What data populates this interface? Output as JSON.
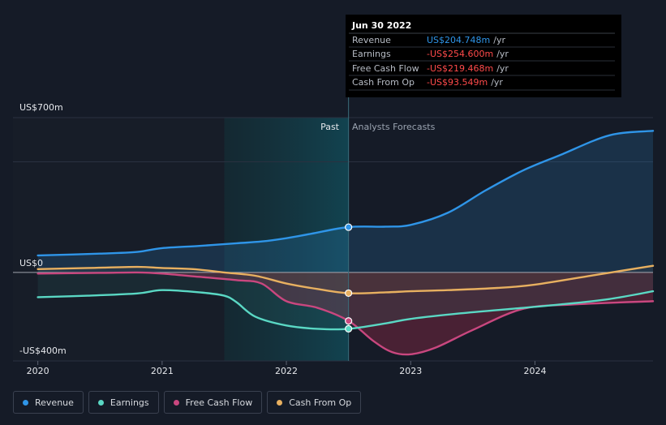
{
  "colors": {
    "background": "#151b27",
    "revenue": "#2f95e8",
    "earnings": "#5ad8c4",
    "free_cash_flow": "#c9477f",
    "cash_from_op": "#e8b060",
    "grid": "#2a3140",
    "zero_line": "#ffffff",
    "negative": "#ff4a4a",
    "past_shade": "#13383f"
  },
  "tooltip": {
    "date": "Jun 30 2022",
    "rows": [
      {
        "label": "Revenue",
        "value": "US$204.748m",
        "unit": "/yr",
        "color": "#2f95e8"
      },
      {
        "label": "Earnings",
        "value": "-US$254.600m",
        "unit": "/yr",
        "color": "#ff4a4a"
      },
      {
        "label": "Free Cash Flow",
        "value": "-US$219.468m",
        "unit": "/yr",
        "color": "#ff4a4a"
      },
      {
        "label": "Cash From Op",
        "value": "-US$93.549m",
        "unit": "/yr",
        "color": "#ff4a4a"
      }
    ]
  },
  "labels": {
    "past": "Past",
    "forecast": "Analysts Forecasts"
  },
  "legend": [
    {
      "name": "revenue",
      "label": "Revenue",
      "color": "#2f95e8"
    },
    {
      "name": "earnings",
      "label": "Earnings",
      "color": "#5ad8c4"
    },
    {
      "name": "free-cash-flow",
      "label": "Free Cash Flow",
      "color": "#c9477f"
    },
    {
      "name": "cash-from-op",
      "label": "Cash From Op",
      "color": "#e8b060"
    }
  ],
  "chart_data": {
    "type": "line",
    "title": "",
    "xlabel": "",
    "ylabel": "",
    "x_ticks": [
      2020,
      2021,
      2022,
      2023,
      2024
    ],
    "xlim": [
      2019.8,
      2024.95
    ],
    "ylim": [
      -400,
      700
    ],
    "y_tick_labels": [
      {
        "value": 700,
        "label": "US$700m"
      },
      {
        "value": 0,
        "label": "US$0"
      },
      {
        "value": -400,
        "label": "-US$400m"
      }
    ],
    "gridlines": [
      700,
      500,
      0,
      -400
    ],
    "past_region": [
      2021.5,
      2022.5
    ],
    "divider_x": 2022.5,
    "series": [
      {
        "name": "Revenue",
        "key": "revenue",
        "x": [
          2020.0,
          2020.5,
          2020.8,
          2021.0,
          2021.3,
          2021.6,
          2021.8,
          2022.0,
          2022.2,
          2022.5,
          2022.8,
          2023.0,
          2023.3,
          2023.6,
          2023.9,
          2024.2,
          2024.6,
          2024.95
        ],
        "y": [
          77,
          85,
          93,
          110,
          120,
          132,
          140,
          155,
          175,
          205,
          207,
          215,
          270,
          370,
          460,
          530,
          620,
          640
        ]
      },
      {
        "name": "Earnings",
        "key": "earnings",
        "x": [
          2020.0,
          2020.4,
          2020.8,
          2021.0,
          2021.3,
          2021.5,
          2021.6,
          2021.75,
          2022.0,
          2022.25,
          2022.5,
          2022.8,
          2023.0,
          2023.4,
          2023.8,
          2024.2,
          2024.6,
          2024.95
        ],
        "y": [
          -112,
          -105,
          -95,
          -80,
          -90,
          -105,
          -135,
          -200,
          -240,
          -255,
          -255,
          -230,
          -210,
          -185,
          -165,
          -145,
          -120,
          -85
        ]
      },
      {
        "name": "Free Cash Flow",
        "key": "free_cash_flow",
        "x": [
          2020.0,
          2020.5,
          2020.8,
          2021.0,
          2021.3,
          2021.6,
          2021.8,
          2022.0,
          2022.25,
          2022.5,
          2022.7,
          2022.85,
          2023.0,
          2023.2,
          2023.5,
          2023.9,
          2024.3,
          2024.95
        ],
        "y": [
          -5,
          -2,
          0,
          -5,
          -20,
          -35,
          -50,
          -130,
          -160,
          -219,
          -310,
          -360,
          -370,
          -340,
          -260,
          -165,
          -145,
          -130
        ]
      },
      {
        "name": "Cash From Op",
        "key": "cash_from_op",
        "x": [
          2020.0,
          2020.4,
          2020.8,
          2021.0,
          2021.25,
          2021.5,
          2021.75,
          2022.0,
          2022.25,
          2022.5,
          2022.8,
          2023.0,
          2023.3,
          2023.7,
          2024.0,
          2024.5,
          2024.95
        ],
        "y": [
          15,
          20,
          25,
          20,
          15,
          0,
          -15,
          -50,
          -75,
          -94,
          -90,
          -85,
          -80,
          -70,
          -55,
          -10,
          30
        ]
      }
    ],
    "highlight_x": 2022.5,
    "highlight_values": {
      "revenue": 204.748,
      "earnings": -254.6,
      "free_cash_flow": -219.468,
      "cash_from_op": -93.549
    }
  }
}
